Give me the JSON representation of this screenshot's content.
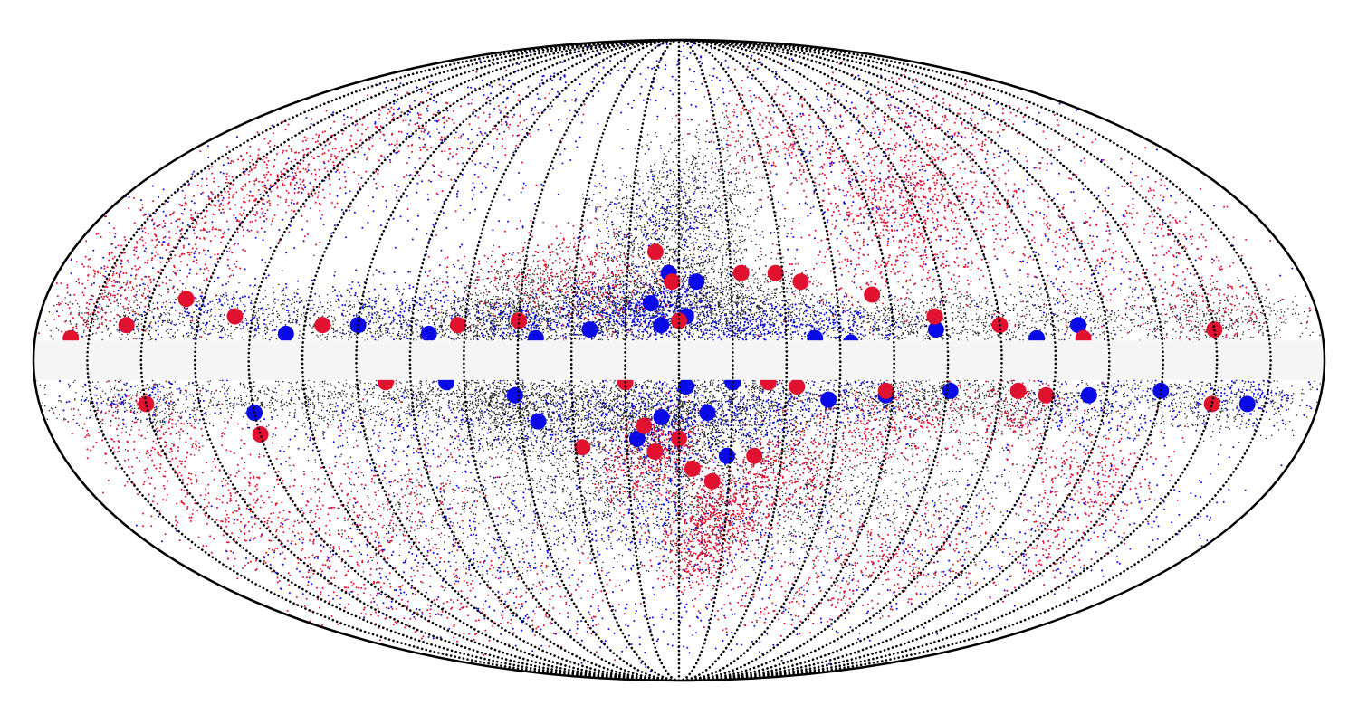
{
  "chart_data": {
    "type": "scatter",
    "projection": "mollweide",
    "grid": true,
    "grid_style": "dotted",
    "meridians_deg": [
      -165,
      -150,
      -135,
      -120,
      -105,
      -90,
      -75,
      -60,
      -45,
      -30,
      -15,
      0,
      15,
      30,
      45,
      60,
      75,
      90,
      105,
      120,
      135,
      150,
      165
    ],
    "masked_band_lat_deg": [
      -4.5,
      4.5
    ],
    "xlim": [
      -180,
      180
    ],
    "ylim": [
      -90,
      90
    ],
    "series": [
      {
        "color": "#222222",
        "marker": "small dots",
        "clusters": [
          [
            -45,
            12,
            10,
            6,
            900
          ],
          [
            0,
            14,
            14,
            7,
            1200
          ],
          [
            -20,
            10,
            12,
            5,
            700
          ],
          [
            20,
            11,
            12,
            5,
            700
          ],
          [
            -5,
            30,
            12,
            8,
            700
          ],
          [
            10,
            40,
            12,
            10,
            500
          ],
          [
            -60,
            8,
            14,
            4,
            600
          ],
          [
            60,
            8,
            14,
            4,
            600
          ],
          [
            -100,
            9,
            18,
            4,
            600
          ],
          [
            100,
            9,
            18,
            4,
            600
          ],
          [
            -150,
            9,
            15,
            4,
            500
          ],
          [
            150,
            9,
            15,
            4,
            500
          ],
          [
            -45,
            -12,
            10,
            6,
            900
          ],
          [
            0,
            -14,
            14,
            7,
            1100
          ],
          [
            -20,
            -10,
            12,
            5,
            700
          ],
          [
            20,
            -10,
            12,
            5,
            700
          ],
          [
            -60,
            -8,
            14,
            4,
            600
          ],
          [
            60,
            -8,
            14,
            4,
            600
          ],
          [
            -100,
            -9,
            18,
            4,
            600
          ],
          [
            100,
            -9,
            18,
            4,
            600
          ],
          [
            -150,
            -9,
            15,
            4,
            500
          ],
          [
            150,
            -9,
            15,
            4,
            500
          ],
          [
            -30,
            -30,
            15,
            10,
            700
          ],
          [
            5,
            -30,
            12,
            10,
            700
          ],
          [
            40,
            -30,
            15,
            10,
            600
          ],
          [
            -80,
            -35,
            20,
            12,
            500
          ],
          [
            80,
            -35,
            20,
            12,
            500
          ]
        ]
      },
      {
        "color": "#0a0ae6",
        "marker": "dots",
        "clusters": [
          [
            -5,
            10,
            7,
            4,
            350
          ],
          [
            -20,
            12,
            8,
            4,
            250
          ],
          [
            -45,
            8,
            8,
            3,
            200
          ],
          [
            20,
            8,
            10,
            3,
            250
          ],
          [
            45,
            8,
            10,
            3,
            200
          ],
          [
            -80,
            12,
            12,
            5,
            200
          ],
          [
            -130,
            10,
            15,
            5,
            200
          ],
          [
            -150,
            30,
            20,
            10,
            200
          ],
          [
            -5,
            30,
            10,
            8,
            200
          ],
          [
            60,
            40,
            20,
            10,
            200
          ],
          [
            120,
            25,
            25,
            12,
            200
          ],
          [
            -80,
            45,
            25,
            12,
            200
          ],
          [
            90,
            60,
            40,
            10,
            150
          ],
          [
            -100,
            65,
            40,
            10,
            150
          ],
          [
            -5,
            -15,
            8,
            6,
            350
          ],
          [
            20,
            -12,
            10,
            5,
            250
          ],
          [
            50,
            -10,
            12,
            5,
            200
          ],
          [
            -30,
            -12,
            12,
            5,
            200
          ],
          [
            -80,
            -15,
            20,
            6,
            200
          ],
          [
            120,
            -10,
            15,
            5,
            200
          ],
          [
            160,
            -8,
            10,
            4,
            150
          ],
          [
            -150,
            -8,
            12,
            4,
            150
          ],
          [
            -10,
            -35,
            15,
            10,
            250
          ],
          [
            30,
            -40,
            20,
            10,
            200
          ],
          [
            -60,
            -40,
            20,
            10,
            200
          ],
          [
            100,
            -45,
            30,
            12,
            200
          ],
          [
            -110,
            -50,
            30,
            12,
            200
          ],
          [
            0,
            -65,
            40,
            8,
            150
          ],
          [
            140,
            -35,
            20,
            10,
            150
          ],
          [
            0,
            70,
            40,
            8,
            120
          ]
        ]
      },
      {
        "color": "#e01230",
        "marker": "dots",
        "clusters": [
          [
            70,
            35,
            14,
            8,
            600
          ],
          [
            95,
            45,
            14,
            8,
            250
          ],
          [
            40,
            55,
            15,
            8,
            250
          ],
          [
            -135,
            42,
            15,
            8,
            400
          ],
          [
            -150,
            25,
            12,
            8,
            250
          ],
          [
            -165,
            15,
            8,
            6,
            200
          ],
          [
            -40,
            20,
            15,
            6,
            250
          ],
          [
            -20,
            18,
            10,
            6,
            150
          ],
          [
            60,
            20,
            15,
            6,
            200
          ],
          [
            115,
            25,
            12,
            8,
            200
          ],
          [
            150,
            30,
            10,
            8,
            150
          ],
          [
            -100,
            55,
            25,
            8,
            250
          ],
          [
            120,
            60,
            25,
            8,
            200
          ],
          [
            150,
            12,
            10,
            5,
            150
          ],
          [
            15,
            -35,
            8,
            6,
            400
          ],
          [
            35,
            -25,
            10,
            6,
            300
          ],
          [
            5,
            -45,
            8,
            6,
            300
          ],
          [
            -5,
            -20,
            6,
            5,
            200
          ],
          [
            -15,
            -25,
            6,
            5,
            150
          ],
          [
            60,
            -15,
            12,
            5,
            250
          ],
          [
            95,
            -12,
            10,
            5,
            200
          ],
          [
            120,
            -25,
            10,
            6,
            200
          ],
          [
            -150,
            -20,
            12,
            8,
            300
          ],
          [
            -140,
            -40,
            15,
            8,
            250
          ],
          [
            -110,
            -35,
            12,
            8,
            200
          ],
          [
            -80,
            -30,
            12,
            8,
            150
          ],
          [
            80,
            -45,
            15,
            8,
            250
          ],
          [
            130,
            -40,
            10,
            8,
            200
          ],
          [
            50,
            -55,
            20,
            8,
            200
          ],
          [
            -60,
            -55,
            20,
            8,
            150
          ],
          [
            -120,
            -60,
            25,
            6,
            150
          ]
        ]
      }
    ],
    "large_markers": [
      {
        "color": "#0a0ae6",
        "points": [
          [
            -5,
            8
          ],
          [
            2,
            10
          ],
          [
            -8,
            13
          ],
          [
            -3,
            20
          ],
          [
            5,
            18
          ],
          [
            -25,
            7
          ],
          [
            -40,
            5
          ],
          [
            -70,
            6
          ],
          [
            -90,
            8
          ],
          [
            -110,
            6
          ],
          [
            38,
            5
          ],
          [
            48,
            4
          ],
          [
            72,
            7
          ],
          [
            100,
            5
          ],
          [
            112,
            8
          ],
          [
            -5,
            -13
          ],
          [
            8,
            -12
          ],
          [
            -12,
            -18
          ],
          [
            14,
            -22
          ],
          [
            42,
            -9
          ],
          [
            58,
            -8
          ],
          [
            76,
            -7
          ],
          [
            115,
            -8
          ],
          [
            135,
            -7
          ],
          [
            160,
            -10
          ],
          [
            -46,
            -8
          ],
          [
            -120,
            -12
          ],
          [
            -40,
            -14
          ],
          [
            2,
            -6
          ],
          [
            15,
            -5
          ],
          [
            -65,
            -5
          ]
        ]
      },
      {
        "color": "#e01230",
        "points": [
          [
            -140,
            14
          ],
          [
            -125,
            10
          ],
          [
            -155,
            8
          ],
          [
            -100,
            8
          ],
          [
            -45,
            9
          ],
          [
            -62,
            8
          ],
          [
            -7,
            25
          ],
          [
            -2,
            18
          ],
          [
            0,
            9
          ],
          [
            18,
            20
          ],
          [
            28,
            20
          ],
          [
            35,
            18
          ],
          [
            55,
            15
          ],
          [
            72,
            10
          ],
          [
            90,
            8
          ],
          [
            113,
            5
          ],
          [
            150,
            7
          ],
          [
            -170,
            5
          ],
          [
            -150,
            -10
          ],
          [
            -120,
            -17
          ],
          [
            -82,
            -5
          ],
          [
            -28,
            -20
          ],
          [
            -7,
            -21
          ],
          [
            -15,
            -5
          ],
          [
            4,
            -25
          ],
          [
            25,
            -5
          ],
          [
            33,
            -6
          ],
          [
            58,
            -7
          ],
          [
            95,
            -7
          ],
          [
            103,
            -8
          ],
          [
            150,
            -10
          ],
          [
            -10,
            -15
          ],
          [
            0,
            -18
          ],
          [
            10,
            -28
          ],
          [
            22,
            -22
          ]
        ]
      }
    ]
  }
}
